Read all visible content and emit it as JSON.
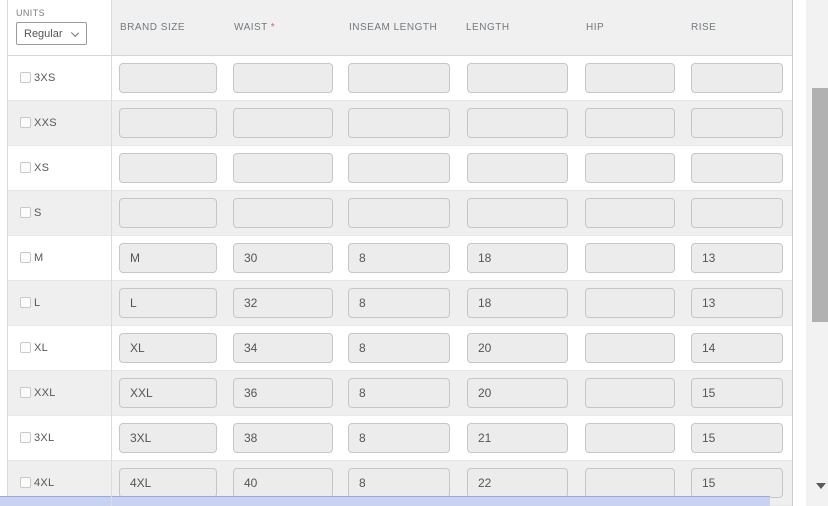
{
  "units": {
    "label": "UNITS",
    "value": "Regular"
  },
  "header": {
    "required_marker": "*",
    "columns": [
      {
        "label": "BRAND SIZE",
        "required": false
      },
      {
        "label": "WAIST",
        "required": true
      },
      {
        "label": "INSEAM LENGTH",
        "required": false
      },
      {
        "label": "LENGTH",
        "required": false
      },
      {
        "label": "HIP",
        "required": false
      },
      {
        "label": "RISE",
        "required": false
      }
    ]
  },
  "rows": [
    {
      "size": "3XS",
      "checked": false,
      "values": [
        "",
        "",
        "",
        "",
        "",
        ""
      ]
    },
    {
      "size": "XXS",
      "checked": false,
      "values": [
        "",
        "",
        "",
        "",
        "",
        ""
      ]
    },
    {
      "size": "XS",
      "checked": false,
      "values": [
        "",
        "",
        "",
        "",
        "",
        ""
      ]
    },
    {
      "size": "S",
      "checked": false,
      "values": [
        "",
        "",
        "",
        "",
        "",
        ""
      ]
    },
    {
      "size": "M",
      "checked": false,
      "values": [
        "M",
        "30",
        "8",
        "18",
        "",
        "13"
      ]
    },
    {
      "size": "L",
      "checked": false,
      "values": [
        "L",
        "32",
        "8",
        "18",
        "",
        "13"
      ]
    },
    {
      "size": "XL",
      "checked": false,
      "values": [
        "XL",
        "34",
        "8",
        "20",
        "",
        "14"
      ]
    },
    {
      "size": "XXL",
      "checked": false,
      "values": [
        "XXL",
        "36",
        "8",
        "20",
        "",
        "15"
      ]
    },
    {
      "size": "3XL",
      "checked": false,
      "values": [
        "3XL",
        "38",
        "8",
        "21",
        "",
        "15"
      ]
    },
    {
      "size": "4XL",
      "checked": false,
      "values": [
        "4XL",
        "40",
        "8",
        "22",
        "",
        "15"
      ]
    }
  ],
  "colors": {
    "header_text": "#71797f",
    "required_asterisk": "#cd6660",
    "row_stripe": "#efefef",
    "input_background": "#ececec",
    "vscrollbar_thumb": "#b1b1b1",
    "hscrollbar_fill": "#c9d3f1",
    "hscrollbar_border": "#98a8e0"
  }
}
